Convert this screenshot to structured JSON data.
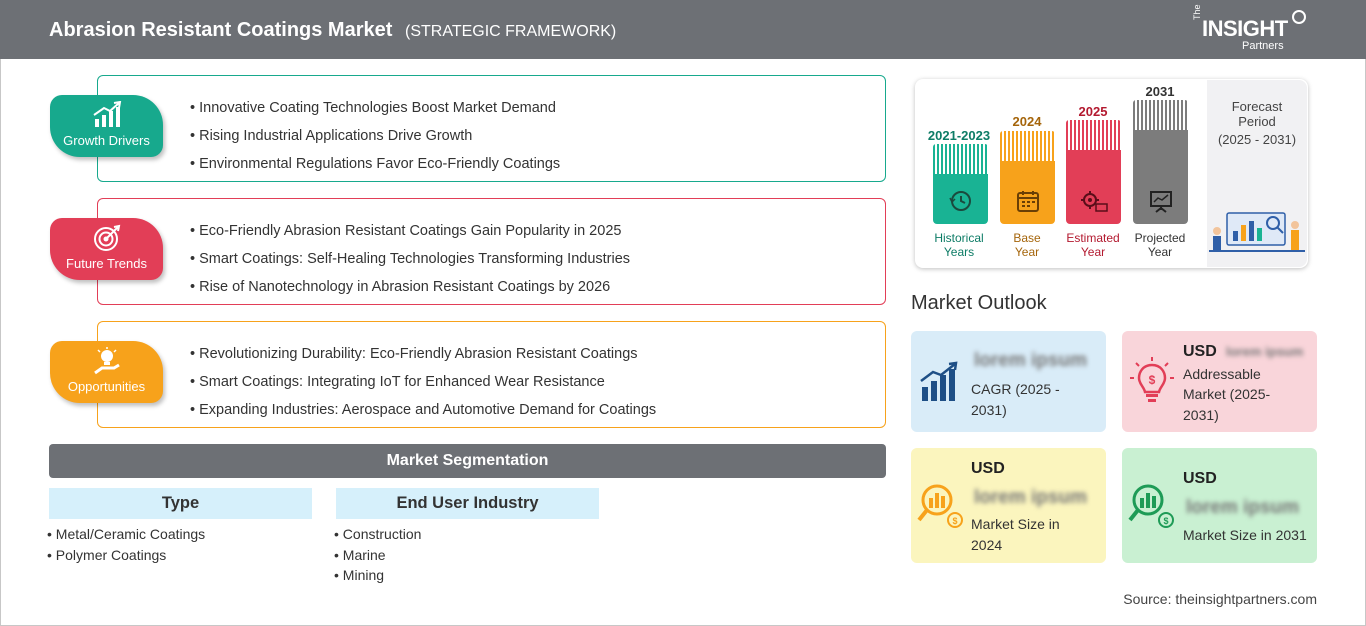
{
  "header": {
    "title": "Abrasion Resistant Coatings Market",
    "subtitle": "(STRATEGIC FRAMEWORK)",
    "logo": {
      "the": "The",
      "insight": "INSIGHT",
      "partners": "Partners"
    }
  },
  "framework": {
    "growth_drivers": {
      "label": "Growth Drivers",
      "color": "#17a98d",
      "items": [
        "Innovative Coating Technologies Boost Market Demand",
        "Rising Industrial Applications Drive Growth",
        "Environmental Regulations Favor Eco-Friendly Coatings"
      ]
    },
    "future_trends": {
      "label": "Future Trends",
      "color": "#e23e57",
      "items": [
        "Eco-Friendly Abrasion Resistant Coatings Gain Popularity in 2025",
        "Smart Coatings: Self-Healing Technologies Transforming Industries",
        "Rise of Nanotechnology in Abrasion Resistant Coatings by 2026"
      ]
    },
    "opportunities": {
      "label": "Opportunities",
      "color": "#f7a21b",
      "items": [
        "Revolutionizing Durability: Eco-Friendly Abrasion Resistant Coatings",
        "Smart Coatings: Integrating IoT for Enhanced Wear Resistance",
        "Expanding Industries: Aerospace and Automotive Demand for Coatings"
      ]
    }
  },
  "segmentation": {
    "title": "Market Segmentation",
    "columns": [
      {
        "heading": "Type",
        "items": [
          "Metal/Ceramic Coatings",
          "Polymer Coatings"
        ]
      },
      {
        "heading": "End User Industry",
        "items": [
          "Construction",
          "Marine",
          "Mining"
        ]
      }
    ]
  },
  "timeline": {
    "periods": [
      {
        "year": "2021-2023",
        "caption_1": "Historical",
        "caption_2": "Years",
        "color": "#19b394",
        "label_color": "#0d7c66",
        "icon": "history-icon"
      },
      {
        "year": "2024",
        "caption_1": "Base",
        "caption_2": "Year",
        "color": "#f7a21b",
        "label_color": "#a5650b",
        "icon": "calendar-icon"
      },
      {
        "year": "2025",
        "caption_1": "Estimated",
        "caption_2": "Year",
        "color": "#e23e57",
        "label_color": "#b3192f",
        "icon": "gear-money-icon"
      },
      {
        "year": "2031",
        "caption_1": "Projected",
        "caption_2": "Year",
        "color": "#7c7c7c",
        "label_color": "#333333",
        "icon": "presentation-icon"
      }
    ],
    "forecast": {
      "line1": "Forecast",
      "line2": "Period",
      "line3": "(2025 - 2031)"
    }
  },
  "outlook": {
    "title": "Market Outlook",
    "cagr": {
      "value": "lorem ipsum",
      "label_1": "CAGR (2025 -",
      "label_2": "2031)",
      "bg": "#d9ecf8"
    },
    "addressable": {
      "currency": "USD",
      "value": "lorem ipsum",
      "label_1": "Addressable",
      "label_2": "Market (2025-",
      "label_3": "2031)",
      "bg": "#f9d5da"
    },
    "size_2024": {
      "currency": "USD",
      "value": "lorem ipsum",
      "label_1": "Market Size in",
      "label_2": "2024",
      "bg": "#fbf5be"
    },
    "size_2031": {
      "currency": "USD",
      "value": "lorem ipsum",
      "label_1": "Market Size in 2031",
      "bg": "#c9f0d2"
    }
  },
  "source": "Source: theinsightpartners.com"
}
